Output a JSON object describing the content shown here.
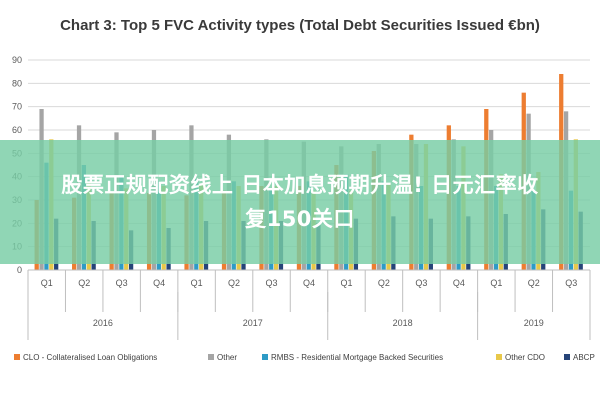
{
  "chart_data": {
    "type": "bar",
    "title": "Chart 3: Top 5 FVC Activity types (Total Debt Securities Issued €bn)",
    "xlabel": "",
    "ylabel": "",
    "ylim": [
      0,
      90
    ],
    "yticks": [
      0,
      10,
      20,
      30,
      40,
      50,
      60,
      70,
      80,
      90
    ],
    "grid": true,
    "legend_position": "bottom",
    "categories": [
      "Q1",
      "Q2",
      "Q3",
      "Q4",
      "Q1",
      "Q2",
      "Q3",
      "Q4",
      "Q1",
      "Q2",
      "Q3",
      "Q4",
      "Q1",
      "Q2",
      "Q3"
    ],
    "years": [
      {
        "label": "2016",
        "span": 4
      },
      {
        "label": "2017",
        "span": 4
      },
      {
        "label": "2018",
        "span": 4
      },
      {
        "label": "2019",
        "span": 3
      }
    ],
    "series": [
      {
        "name": "CLO - Collateralised Loan Obligations",
        "color": "#ED7D31",
        "values": [
          30,
          31,
          33,
          33,
          32,
          34,
          36,
          36,
          45,
          51,
          58,
          62,
          69,
          76,
          84
        ]
      },
      {
        "name": "Other",
        "color": "#A5A5A5",
        "values": [
          69,
          62,
          59,
          60,
          62,
          58,
          56,
          55,
          53,
          54,
          54,
          56,
          60,
          67,
          68
        ]
      },
      {
        "name": "RMBS - Residential Mortgage Backed Securities",
        "color": "#2E9BC6",
        "values": [
          46,
          45,
          40,
          38,
          39,
          38,
          35,
          38,
          41,
          38,
          36,
          36,
          36,
          34,
          34
        ]
      },
      {
        "name": "Other CDO",
        "color": "#E8C84A",
        "values": [
          56,
          38,
          35,
          36,
          37,
          36,
          36,
          34,
          34,
          37,
          54,
          53,
          41,
          42,
          56
        ]
      },
      {
        "name": "ABCP",
        "color": "#264478",
        "values": [
          22,
          21,
          17,
          18,
          21,
          21,
          21,
          20,
          22,
          23,
          22,
          23,
          24,
          26,
          25
        ]
      }
    ]
  },
  "overlay": {
    "line1": "股票正规配资线上 日本加息预期升温! 日元汇率收",
    "line2": "复150关口"
  }
}
